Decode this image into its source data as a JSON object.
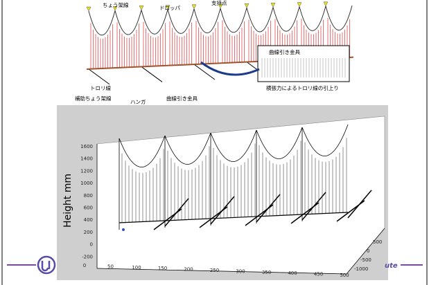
{
  "diagram": {
    "labels": {
      "messenger": "ちょう架線",
      "dropper": "ドロッパ",
      "support": "支持点",
      "trolley": "トロリ線",
      "aux_messenger": "補助ちょう架線",
      "hanger": "ハンガ",
      "pull_off": "曲線引き金具"
    },
    "inset": {
      "title": "曲線引き金具",
      "caption": "横張力によるトロリ線の引上り"
    }
  },
  "plot": {
    "y_label": "Height  mm",
    "z_ticks": [
      1600,
      1400,
      1200,
      1000,
      800,
      600,
      400,
      200,
      0,
      -200
    ],
    "x_ticks": [
      0,
      50,
      100,
      150,
      200,
      250,
      300,
      350,
      400,
      450,
      500
    ],
    "y_ticks": [
      500,
      0,
      -500,
      -1000
    ]
  },
  "footer": {
    "text": "ute"
  }
}
